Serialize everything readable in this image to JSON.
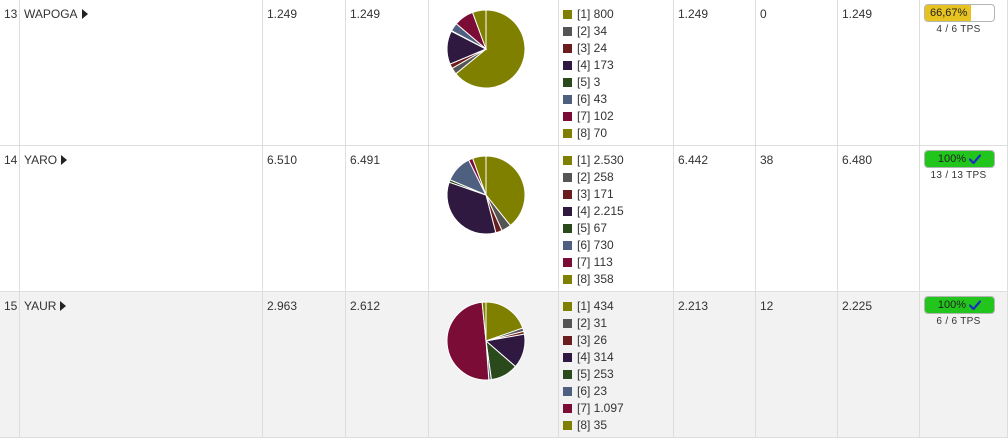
{
  "legend_colors": [
    "#808000",
    "#555555",
    "#6b1d1d",
    "#301940",
    "#2a4a1c",
    "#4f5f7f",
    "#7a0c36",
    "#808000"
  ],
  "rows": [
    {
      "id": "13",
      "name": "WAPOGA",
      "c1": "1.249",
      "c2": "1.249",
      "pie": [
        800,
        34,
        24,
        173,
        3,
        43,
        102,
        70
      ],
      "legend": [
        "[1] 800",
        "[2] 34",
        "[3] 24",
        "[4] 173",
        "[5] 3",
        "[6] 43",
        "[7] 102",
        "[8] 70"
      ],
      "c3": "1.249",
      "c4": "0",
      "c5": "1.249",
      "progress_label": "66,67%",
      "progress_value": 0.6667,
      "progress_color": "#e6c321",
      "progress_check": false,
      "tps": "4 / 6 TPS",
      "shade": false
    },
    {
      "id": "14",
      "name": "YARO",
      "c1": "6.510",
      "c2": "6.491",
      "pie": [
        2530,
        258,
        171,
        2215,
        67,
        730,
        113,
        358
      ],
      "legend": [
        "[1] 2.530",
        "[2] 258",
        "[3] 171",
        "[4] 2.215",
        "[5] 67",
        "[6] 730",
        "[7] 113",
        "[8] 358"
      ],
      "c3": "6.442",
      "c4": "38",
      "c5": "6.480",
      "progress_label": "100%",
      "progress_value": 1.0,
      "progress_color": "#22c51c",
      "progress_check": true,
      "tps": "13 / 13 TPS",
      "shade": false
    },
    {
      "id": "15",
      "name": "YAUR",
      "c1": "2.963",
      "c2": "2.612",
      "pie": [
        434,
        31,
        26,
        314,
        253,
        23,
        1097,
        35
      ],
      "legend": [
        "[1] 434",
        "[2] 31",
        "[3] 26",
        "[4] 314",
        "[5] 253",
        "[6] 23",
        "[7] 1.097",
        "[8] 35"
      ],
      "c3": "2.213",
      "c4": "12",
      "c5": "2.225",
      "progress_label": "100%",
      "progress_value": 1.0,
      "progress_color": "#22c51c",
      "progress_check": true,
      "tps": "6 / 6 TPS",
      "shade": true
    }
  ]
}
